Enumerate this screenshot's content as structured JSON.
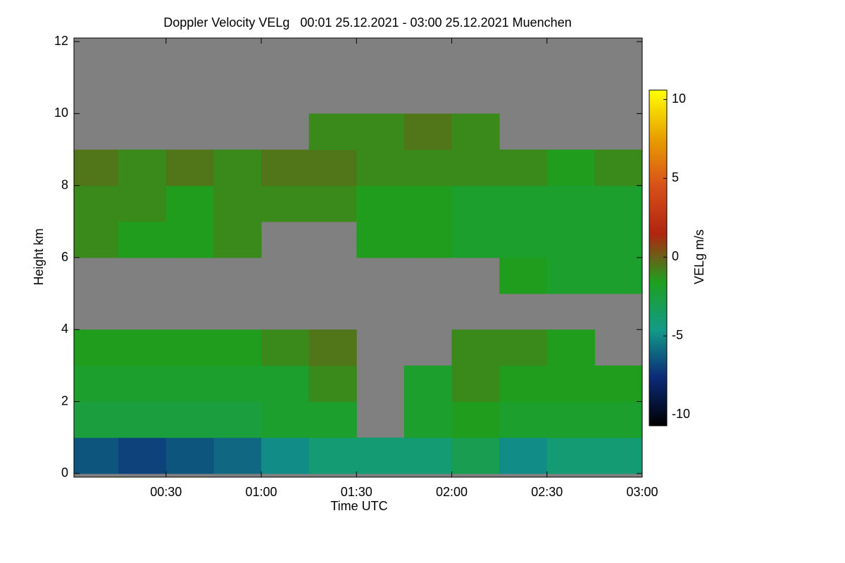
{
  "chart_data": {
    "type": "heatmap",
    "title": "Doppler Velocity VELg   00:01 25.12.2021 - 03:00 25.12.2021 Muenchen",
    "x_label": "Time UTC",
    "y_label": "Height km",
    "colorbar_label": "VELg m/s",
    "xlim": [
      1,
      180
    ],
    "xticks": [
      {
        "value": 30,
        "label": "00:30"
      },
      {
        "value": 60,
        "label": "01:00"
      },
      {
        "value": 90,
        "label": "01:30"
      },
      {
        "value": 120,
        "label": "02:00"
      },
      {
        "value": 150,
        "label": "02:30"
      },
      {
        "value": 180,
        "label": "03:00"
      }
    ],
    "ylim": [
      -0.1,
      12.1
    ],
    "yticks": [
      0,
      2,
      4,
      6,
      8,
      10,
      12
    ],
    "zlim": [
      -10.7,
      10.6
    ],
    "zticks": [
      10,
      5,
      0,
      -5,
      -10
    ],
    "colorscale": [
      "#000000",
      "#0b2a78",
      "#139a88",
      "#1ea01e",
      "#b02510",
      "#d8501a",
      "#e8a000",
      "#ffff00"
    ],
    "background": "#808080",
    "xbins": [
      1,
      15,
      30,
      45,
      60,
      75,
      90,
      105,
      120,
      135,
      150,
      165,
      180
    ],
    "ybins": [
      0,
      1,
      2,
      3,
      4,
      5,
      6,
      7,
      8,
      9,
      10,
      11,
      12
    ],
    "z": [
      [
        -6.5,
        -7,
        -6.5,
        -6,
        -5,
        -4,
        -4,
        -4,
        -3,
        -5,
        -4,
        -4
      ],
      [
        -2.5,
        -2.5,
        -2.5,
        -2.5,
        -2,
        -2,
        null,
        -2,
        -1.5,
        -2,
        -2,
        -2
      ],
      [
        -2,
        -2,
        -2,
        -2,
        -2,
        -1,
        null,
        -2,
        -1,
        -1.5,
        -1.5,
        -1.5
      ],
      [
        -1.5,
        -1.5,
        -1.5,
        -1.5,
        -1,
        -0.5,
        null,
        null,
        -1,
        -1,
        -1.5,
        null
      ],
      [
        null,
        null,
        null,
        null,
        null,
        null,
        null,
        null,
        null,
        null,
        null,
        null
      ],
      [
        null,
        null,
        null,
        null,
        null,
        null,
        null,
        null,
        null,
        -1.5,
        -2,
        -2
      ],
      [
        -1,
        -1.5,
        -1.5,
        -1,
        null,
        null,
        -1.5,
        -1.5,
        -2,
        -2,
        -2,
        -2
      ],
      [
        -1,
        -1,
        -1.5,
        -1,
        -1,
        -1,
        -1.5,
        -1.5,
        -2,
        -2,
        -2,
        -2
      ],
      [
        -0.5,
        -1,
        -0.5,
        -1,
        -0.5,
        -0.5,
        -1,
        -1,
        -1,
        -1,
        -1.5,
        -1
      ],
      [
        null,
        null,
        null,
        null,
        null,
        -1,
        -1,
        -0.5,
        -1,
        null,
        null,
        null
      ],
      [
        null,
        null,
        null,
        null,
        null,
        null,
        null,
        null,
        null,
        null,
        null,
        null
      ],
      [
        null,
        null,
        null,
        null,
        null,
        null,
        null,
        null,
        null,
        null,
        null,
        null
      ]
    ]
  }
}
